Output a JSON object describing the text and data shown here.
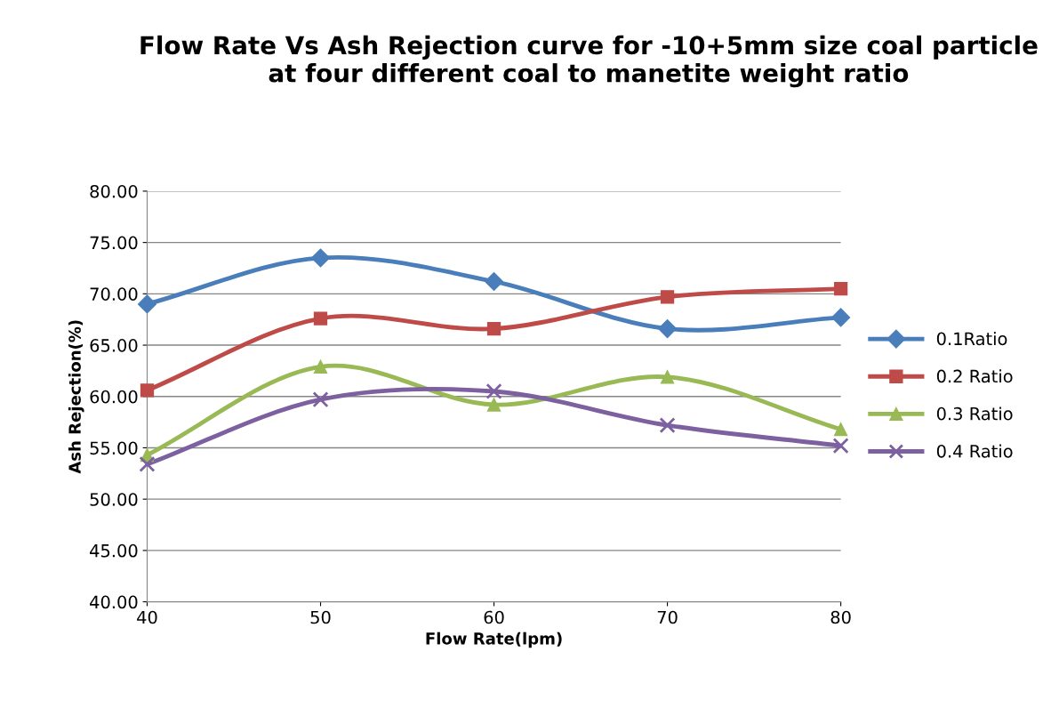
{
  "chart_data": {
    "type": "line",
    "title": "Flow Rate Vs Ash Rejection curve for -10+5mm size coal particle at four different coal to manetite weight ratio",
    "xlabel": "Flow Rate(lpm)",
    "ylabel": "Ash Rejection(%)",
    "x": [
      40,
      50,
      60,
      70,
      80
    ],
    "series": [
      {
        "name": "0.1Ratio",
        "color": "#4a7ebb",
        "marker": "diamond",
        "values": [
          69.0,
          73.5,
          71.2,
          66.6,
          67.7
        ]
      },
      {
        "name": "0.2 Ratio",
        "color": "#be4b48",
        "marker": "square",
        "values": [
          60.6,
          67.6,
          66.6,
          69.7,
          70.5
        ]
      },
      {
        "name": "0.3 Ratio",
        "color": "#98b954",
        "marker": "triangle",
        "values": [
          54.3,
          62.9,
          59.2,
          61.9,
          56.8
        ]
      },
      {
        "name": "0.4 Ratio",
        "color": "#7d60a0",
        "marker": "cross",
        "values": [
          53.4,
          59.7,
          60.5,
          57.2,
          55.2
        ]
      }
    ],
    "xlim": [
      40,
      80
    ],
    "xticks": [
      40,
      50,
      60,
      70,
      80
    ],
    "ylim": [
      40,
      80
    ],
    "yticks": [
      {
        "value": 40,
        "label": "40.00"
      },
      {
        "value": 45,
        "label": "45.00"
      },
      {
        "value": 50,
        "label": "50.00"
      },
      {
        "value": 55,
        "label": "55.00"
      },
      {
        "value": 60,
        "label": "60.00"
      },
      {
        "value": 65,
        "label": "65.00"
      },
      {
        "value": 70,
        "label": "70.00"
      },
      {
        "value": 75,
        "label": "75.00"
      },
      {
        "value": 80,
        "label": "80.00"
      }
    ],
    "grid": "y",
    "legend": "right",
    "line_style": "solid"
  }
}
